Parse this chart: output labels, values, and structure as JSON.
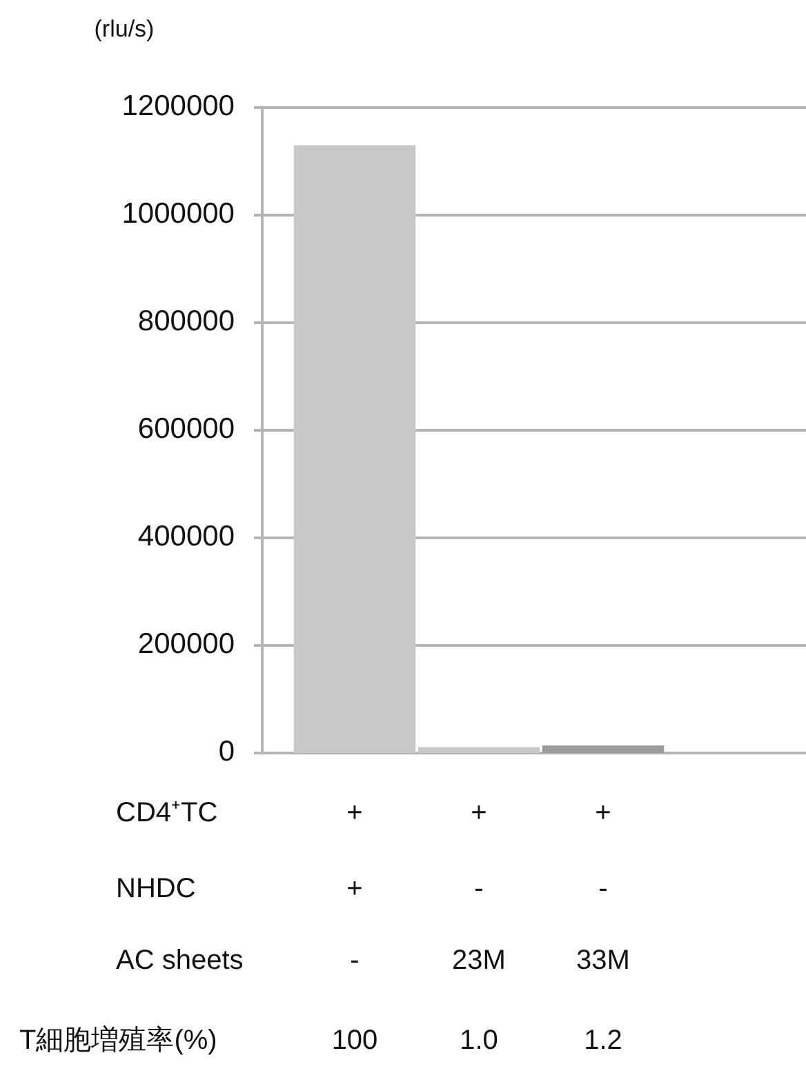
{
  "chart_data": {
    "type": "bar",
    "ylabel": "(rlu/s)",
    "categories": [
      null,
      null,
      null
    ],
    "values": [
      1130000,
      11000,
      14000
    ],
    "colors": [
      "#c8c8c8",
      "#c8c8c8",
      "#9a9a9a"
    ],
    "ylim": [
      0,
      1200000
    ],
    "yticks": [
      0,
      200000,
      400000,
      600000,
      800000,
      1000000,
      1200000
    ],
    "grid": "y",
    "annotations": [
      "CD4⁺TC",
      "+",
      "+",
      "+",
      "NHDC",
      "+",
      "-",
      "-",
      "AC sheets",
      "-",
      "23M",
      "33M",
      "T細胞増殖率(%)",
      "100",
      "1.0",
      "1.2"
    ]
  }
}
